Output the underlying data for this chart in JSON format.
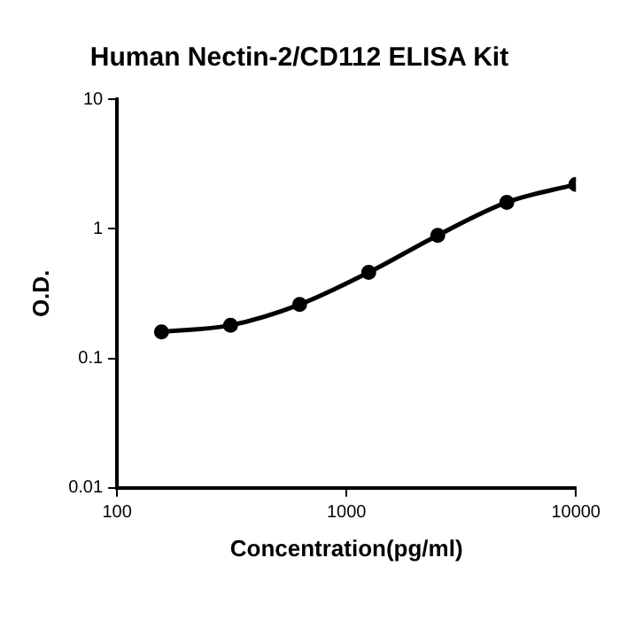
{
  "chart_data": {
    "type": "line",
    "title": "Human Nectin-2/CD112 ELISA Kit",
    "xlabel": "Concentration(pg/ml)",
    "ylabel": "O.D.",
    "x": [
      156.25,
      312.5,
      625,
      1250,
      2500,
      5000,
      10000
    ],
    "series": [
      {
        "color": "#000000",
        "values": [
          0.16,
          0.18,
          0.26,
          0.46,
          0.89,
          1.6,
          2.2
        ]
      }
    ],
    "log": "xy",
    "xlim": [
      100,
      10000
    ],
    "xticks": [
      100,
      1000,
      10000
    ],
    "ylim": [
      0.01,
      10
    ],
    "yticks": [
      0.01,
      0.1,
      1,
      10
    ],
    "grid": false,
    "legend": false,
    "marker": "circle",
    "line_style": "solid"
  }
}
